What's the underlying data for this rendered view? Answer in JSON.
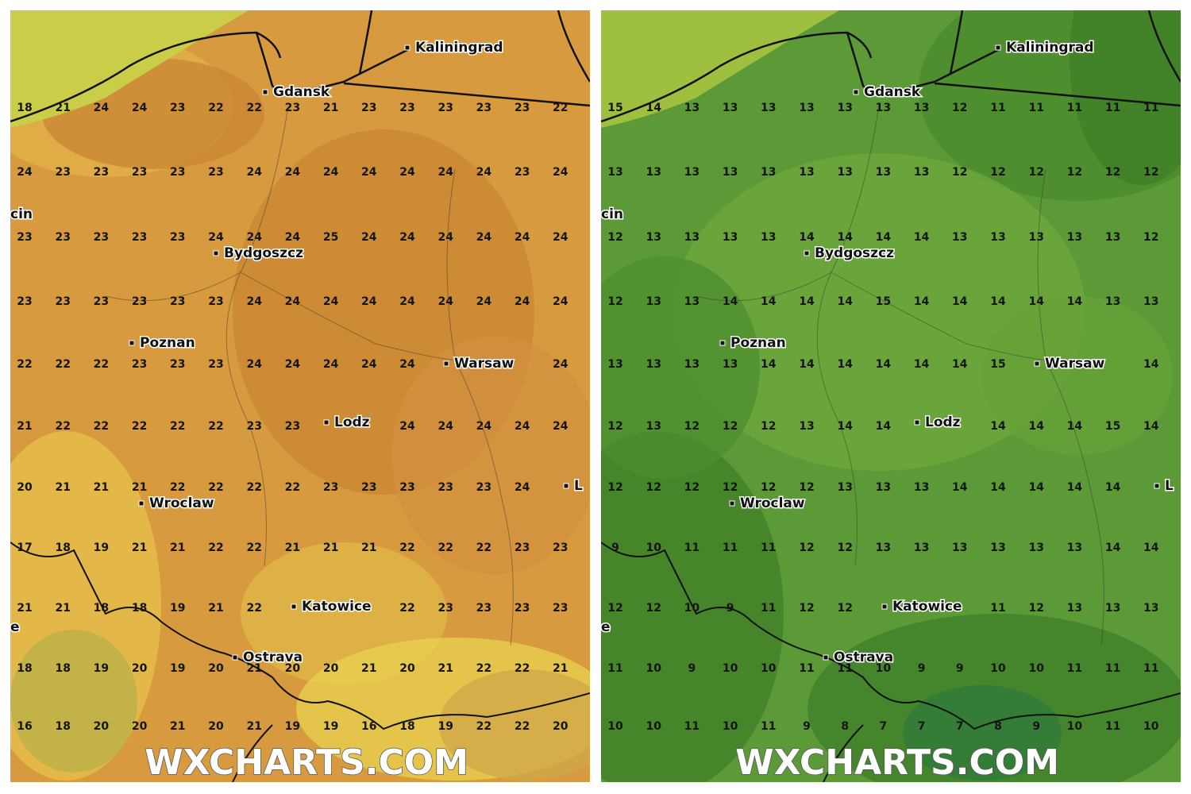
{
  "watermark": "WXCHARTS.COM",
  "cities": [
    {
      "label": "Kaliningrad"
    },
    {
      "label": "Gdansk"
    },
    {
      "label": "Bydgoszcz"
    },
    {
      "label": "Poznan"
    },
    {
      "label": "Warsaw"
    },
    {
      "label": "Lodz"
    },
    {
      "label": "Wroclaw"
    },
    {
      "label": "Katowice"
    },
    {
      "label": "Ostrava"
    },
    {
      "label": "cin"
    },
    {
      "label": "e"
    },
    {
      "label": "L"
    }
  ],
  "panels": [
    {
      "grid": [
        [
          18,
          21,
          24,
          24,
          23,
          22,
          22,
          23,
          21,
          23,
          23,
          23,
          23,
          23,
          22
        ],
        [
          24,
          23,
          23,
          23,
          23,
          23,
          24,
          24,
          24,
          24,
          24,
          24,
          24,
          23,
          24
        ],
        [
          23,
          23,
          23,
          23,
          23,
          24,
          24,
          24,
          25,
          24,
          24,
          24,
          24,
          24,
          24
        ],
        [
          23,
          23,
          23,
          23,
          23,
          23,
          24,
          24,
          24,
          24,
          24,
          24,
          24,
          24,
          24
        ],
        [
          22,
          22,
          22,
          23,
          23,
          23,
          24,
          24,
          24,
          24,
          24,
          null,
          null,
          null,
          24
        ],
        [
          21,
          22,
          22,
          22,
          22,
          22,
          23,
          23,
          null,
          null,
          24,
          24,
          24,
          24,
          24
        ],
        [
          20,
          21,
          21,
          21,
          22,
          22,
          22,
          22,
          23,
          23,
          23,
          23,
          23,
          24,
          null
        ],
        [
          17,
          18,
          19,
          21,
          21,
          22,
          22,
          21,
          21,
          21,
          22,
          22,
          22,
          23,
          23
        ],
        [
          21,
          21,
          18,
          18,
          19,
          21,
          22,
          null,
          null,
          null,
          22,
          23,
          23,
          23,
          23
        ],
        [
          18,
          18,
          19,
          20,
          19,
          20,
          21,
          20,
          20,
          21,
          20,
          21,
          22,
          22,
          21
        ],
        [
          16,
          18,
          20,
          20,
          21,
          20,
          21,
          19,
          19,
          16,
          18,
          19,
          22,
          22,
          20
        ]
      ]
    },
    {
      "grid": [
        [
          15,
          14,
          13,
          13,
          13,
          13,
          13,
          13,
          13,
          12,
          11,
          11,
          11,
          11,
          11
        ],
        [
          13,
          13,
          13,
          13,
          13,
          13,
          13,
          13,
          13,
          12,
          12,
          12,
          12,
          12,
          12
        ],
        [
          12,
          13,
          13,
          13,
          13,
          14,
          14,
          14,
          14,
          13,
          13,
          13,
          13,
          13,
          12
        ],
        [
          12,
          13,
          13,
          14,
          14,
          14,
          14,
          15,
          14,
          14,
          14,
          14,
          14,
          13,
          13
        ],
        [
          13,
          13,
          13,
          13,
          14,
          14,
          14,
          14,
          14,
          14,
          15,
          null,
          null,
          null,
          14
        ],
        [
          12,
          13,
          12,
          12,
          12,
          13,
          14,
          14,
          null,
          null,
          14,
          14,
          14,
          15,
          14
        ],
        [
          12,
          12,
          12,
          12,
          12,
          12,
          13,
          13,
          13,
          14,
          14,
          14,
          14,
          14,
          null
        ],
        [
          9,
          10,
          11,
          11,
          11,
          12,
          12,
          13,
          13,
          13,
          13,
          13,
          13,
          14,
          14
        ],
        [
          12,
          12,
          10,
          9,
          11,
          12,
          12,
          null,
          null,
          null,
          11,
          12,
          13,
          13,
          13
        ],
        [
          11,
          10,
          9,
          10,
          10,
          11,
          11,
          10,
          9,
          9,
          10,
          10,
          11,
          11,
          11
        ],
        [
          10,
          10,
          11,
          10,
          11,
          9,
          8,
          7,
          7,
          7,
          8,
          9,
          10,
          11,
          10
        ]
      ]
    }
  ]
}
